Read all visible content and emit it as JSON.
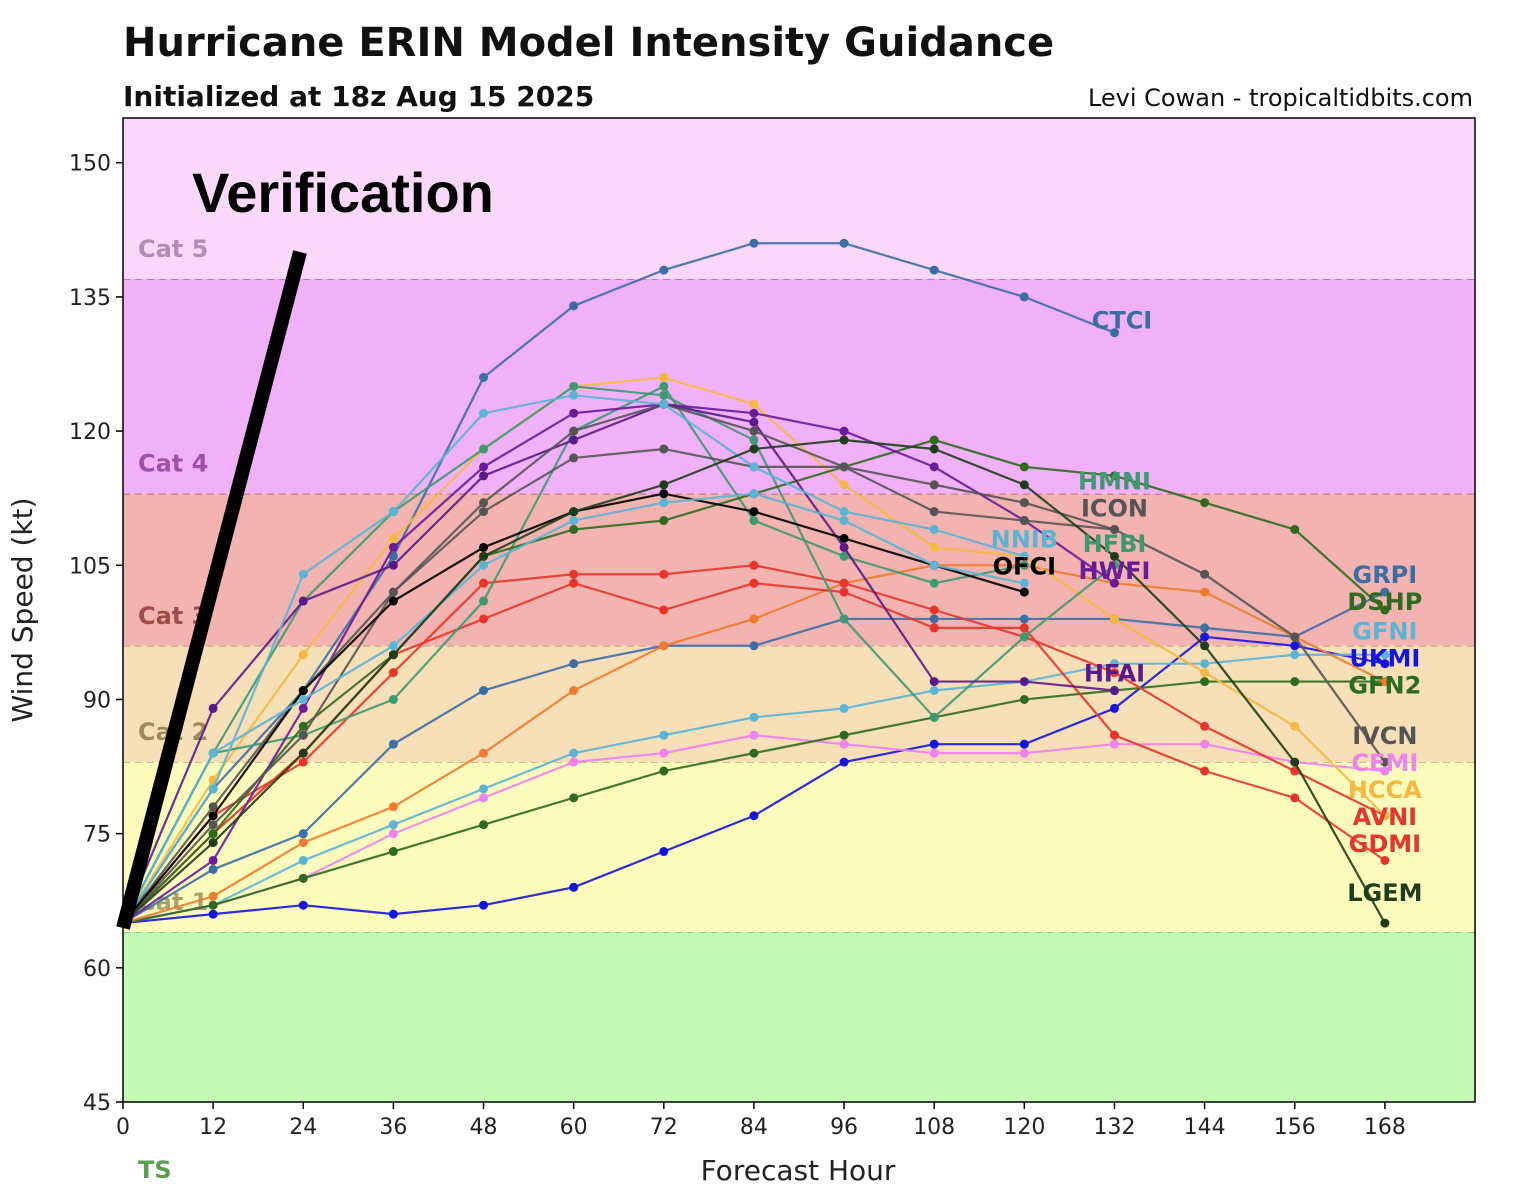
{
  "chart_data": {
    "type": "line",
    "title": "Hurricane ERIN Model Intensity Guidance",
    "subtitle": "Initialized at 18z Aug 15 2025",
    "credit": "Levi Cowan - tropicaltidbits.com",
    "xlabel": "Forecast Hour",
    "ylabel": "Wind Speed (kt)",
    "xlim": [
      0,
      180
    ],
    "ylim": [
      45,
      155
    ],
    "x_ticks": [
      0,
      12,
      24,
      36,
      48,
      60,
      72,
      84,
      96,
      108,
      120,
      132,
      144,
      156,
      168
    ],
    "y_ticks": [
      45,
      60,
      75,
      90,
      105,
      120,
      135,
      150
    ],
    "annotation": "Verification",
    "categories": [
      {
        "name": "TS",
        "min": 45,
        "max": 64,
        "color": "#c4f9b6",
        "label_color": "#5c9e4f"
      },
      {
        "name": "Cat 1",
        "min": 64,
        "max": 83,
        "color": "#fefcbd",
        "label_color": "#a9a36b"
      },
      {
        "name": "Cat 2",
        "min": 83,
        "max": 96,
        "color": "#f7dfb8",
        "label_color": "#9c8a5a"
      },
      {
        "name": "Cat 3",
        "min": 96,
        "max": 113,
        "color": "#f2b3b1",
        "label_color": "#9e4b49"
      },
      {
        "name": "Cat 4",
        "min": 113,
        "max": 137,
        "color": "#f1b1f8",
        "label_color": "#9d4faa"
      },
      {
        "name": "Cat 5",
        "min": 137,
        "max": 155,
        "color": "#f9d8f9",
        "label_color": "#b58ab6"
      }
    ],
    "series": [
      {
        "name": "CTCI",
        "color": "#3b6ea5",
        "x": [
          0,
          12,
          24,
          36,
          48,
          60,
          72,
          84,
          96,
          108,
          120,
          132
        ],
        "values": [
          65,
          80,
          91,
          106,
          126,
          134,
          138,
          141,
          141,
          138,
          135,
          131
        ],
        "label_at": [
          133,
          132.5
        ]
      },
      {
        "name": "GRPI",
        "color": "#3b6ea5",
        "x": [
          0,
          12,
          24,
          36,
          48,
          60,
          72,
          84,
          96,
          108,
          120,
          132,
          144,
          156,
          168
        ],
        "values": [
          65,
          71,
          75,
          85,
          91,
          94,
          96,
          96,
          99,
          99,
          99,
          99,
          98,
          97,
          102
        ],
        "label_at": [
          168,
          104
        ]
      },
      {
        "name": "UKMI",
        "color": "#1515e0",
        "x": [
          0,
          12,
          24,
          36,
          48,
          60,
          72,
          84,
          96,
          108,
          120,
          132,
          144,
          156,
          168
        ],
        "values": [
          65,
          66,
          67,
          66,
          67,
          69,
          73,
          77,
          83,
          85,
          85,
          89,
          97,
          96,
          94
        ],
        "label_at": [
          168,
          96.3
        ]
      },
      {
        "name": "GFNI",
        "color": "#5ab4d6",
        "x": [
          0,
          12,
          24,
          36,
          48,
          60,
          72,
          84,
          96,
          108,
          120,
          132,
          144,
          156,
          168
        ],
        "values": [
          65,
          67,
          72,
          76,
          80,
          84,
          86,
          88,
          89,
          91,
          92,
          94,
          94,
          95,
          95
        ],
        "label_at": [
          168,
          97.7
        ]
      },
      {
        "name": "CEMI",
        "color": "#ee82ee",
        "x": [
          0,
          12,
          24,
          36,
          48,
          60,
          72,
          84,
          96,
          108,
          120,
          132,
          144,
          156,
          168
        ],
        "values": [
          65,
          67,
          70,
          75,
          79,
          83,
          84,
          86,
          85,
          84,
          84,
          85,
          85,
          83,
          82
        ],
        "label_at": [
          168,
          84.5
        ]
      },
      {
        "name": "GFN2",
        "color": "#2e6b1f",
        "x": [
          0,
          12,
          24,
          36,
          48,
          60,
          72,
          84,
          96,
          108,
          120,
          132,
          144,
          156,
          168
        ],
        "values": [
          65,
          67,
          70,
          73,
          76,
          79,
          82,
          84,
          86,
          88,
          90,
          91,
          92,
          92,
          92
        ],
        "label_at": [
          168,
          94.3
        ]
      },
      {
        "name": "",
        "color": "#f07b30",
        "x": [
          0,
          12,
          24,
          36,
          48,
          60,
          72,
          84,
          96,
          108,
          120,
          132,
          144,
          156,
          168
        ],
        "values": [
          65,
          68,
          74,
          78,
          84,
          91,
          96,
          99,
          103,
          105,
          105,
          103,
          102,
          97,
          92
        ],
        "label_at": null
      },
      {
        "name": "AVNI",
        "color": "#e8352a",
        "x": [
          0,
          12,
          24,
          36,
          48,
          60,
          72,
          84,
          96,
          108,
          120,
          132,
          144,
          156,
          168
        ],
        "values": [
          65,
          77,
          83,
          93,
          103,
          104,
          104,
          105,
          103,
          100,
          97,
          93,
          87,
          82,
          77
        ],
        "label_at": [
          168,
          79
        ]
      },
      {
        "name": "GDMI",
        "color": "#e8352a",
        "x": [
          0,
          12,
          24,
          36,
          48,
          60,
          72,
          84,
          96,
          108,
          120,
          132,
          144,
          156,
          168
        ],
        "values": [
          65,
          75,
          84,
          95,
          99,
          103,
          100,
          103,
          102,
          98,
          98,
          86,
          82,
          79,
          72
        ],
        "label_at": [
          168,
          75
        ]
      },
      {
        "name": "HCCA",
        "color": "#f5b942",
        "x": [
          0,
          12,
          24,
          36,
          48,
          60,
          72,
          84,
          96,
          108,
          120,
          132,
          144,
          156,
          168
        ],
        "values": [
          65,
          81,
          95,
          108,
          118,
          125,
          126,
          123,
          114,
          107,
          106,
          99,
          93,
          87,
          77
        ],
        "label_at": [
          168,
          80.5
        ]
      },
      {
        "name": "HFBI",
        "color": "#3d9970",
        "x": [
          0,
          12,
          24,
          36,
          48,
          60,
          72,
          84,
          96,
          108,
          120,
          132
        ],
        "values": [
          65,
          84,
          101,
          111,
          118,
          125,
          124,
          119,
          99,
          88,
          97,
          105
        ],
        "label_at": [
          132,
          107.5
        ]
      },
      {
        "name": "HMNI",
        "color": "#3d9970",
        "x": [
          0,
          12,
          24,
          36,
          48,
          60,
          72,
          84,
          96,
          108,
          120
        ],
        "values": [
          65,
          84,
          86,
          90,
          101,
          120,
          125,
          110,
          106,
          103,
          105
        ],
        "label_at": [
          132,
          114.5
        ]
      },
      {
        "name": "DSHP",
        "color": "#2e6b1f",
        "x": [
          0,
          12,
          24,
          36,
          48,
          60,
          72,
          84,
          96,
          108,
          120,
          132,
          144,
          156,
          168
        ],
        "values": [
          65,
          75,
          87,
          95,
          106,
          109,
          110,
          113,
          116,
          119,
          116,
          115,
          112,
          109,
          100
        ],
        "label_at": [
          168,
          103
        ]
      },
      {
        "name": "HWFI",
        "color": "#6a1b9a",
        "x": [
          0,
          12,
          24,
          36,
          48,
          60,
          72,
          84,
          96,
          108,
          120,
          132
        ],
        "values": [
          65,
          72,
          89,
          107,
          116,
          122,
          123,
          122,
          120,
          116,
          110,
          103
        ],
        "label_at": [
          132,
          105.5
        ]
      },
      {
        "name": "HFAI",
        "color": "#5b1a8a",
        "x": [
          0,
          12,
          24,
          36,
          48,
          60,
          72,
          84,
          96,
          108,
          120,
          132
        ],
        "values": [
          65,
          89,
          101,
          105,
          115,
          119,
          123,
          121,
          107,
          92,
          92,
          91
        ],
        "label_at": [
          132,
          93
        ]
      },
      {
        "name": "ICON",
        "color": "#555555",
        "x": [
          0,
          12,
          24,
          36,
          48,
          60,
          72,
          84,
          96,
          108,
          120,
          132
        ],
        "values": [
          65,
          78,
          91,
          102,
          112,
          120,
          123,
          120,
          116,
          111,
          110,
          109
        ],
        "label_at": [
          132,
          112
        ]
      },
      {
        "name": "IVCN",
        "color": "#555555",
        "x": [
          0,
          12,
          24,
          36,
          48,
          60,
          72,
          84,
          96,
          108,
          120,
          132,
          144,
          156,
          168
        ],
        "values": [
          65,
          76,
          86,
          102,
          111,
          117,
          118,
          116,
          116,
          114,
          112,
          109,
          104,
          97,
          83
        ],
        "label_at": [
          168,
          86
        ]
      },
      {
        "name": "OFCI",
        "color": "#000000",
        "x": [
          0,
          12,
          24,
          36,
          48,
          60,
          72,
          84,
          96,
          108,
          120
        ],
        "values": [
          65,
          77,
          91,
          101,
          107,
          111,
          113,
          111,
          108,
          105,
          102
        ],
        "label_at": [
          120,
          105
        ]
      },
      {
        "name": "NNIB",
        "color": "#5ab4d6",
        "x": [
          0,
          12,
          24,
          36,
          48,
          60,
          72,
          84,
          96,
          108,
          120
        ],
        "values": [
          65,
          80,
          104,
          111,
          122,
          124,
          123,
          116,
          111,
          109,
          106
        ],
        "label_at": [
          120,
          108
        ]
      },
      {
        "name": "",
        "color": "#5ab4d6",
        "x": [
          0,
          12,
          24,
          36,
          48,
          60,
          72,
          84,
          96,
          108,
          120
        ],
        "values": [
          65,
          84,
          90,
          96,
          105,
          110,
          112,
          113,
          110,
          105,
          103
        ],
        "label_at": null
      },
      {
        "name": "LGEM",
        "color": "#1f3d1a",
        "x": [
          0,
          12,
          24,
          36,
          48,
          60,
          72,
          84,
          96,
          108,
          120,
          132,
          144,
          156,
          168
        ],
        "values": [
          65,
          74,
          84,
          95,
          106,
          111,
          114,
          118,
          119,
          118,
          114,
          106,
          96,
          83,
          65
        ],
        "label_at": [
          168,
          68.5
        ]
      }
    ]
  }
}
